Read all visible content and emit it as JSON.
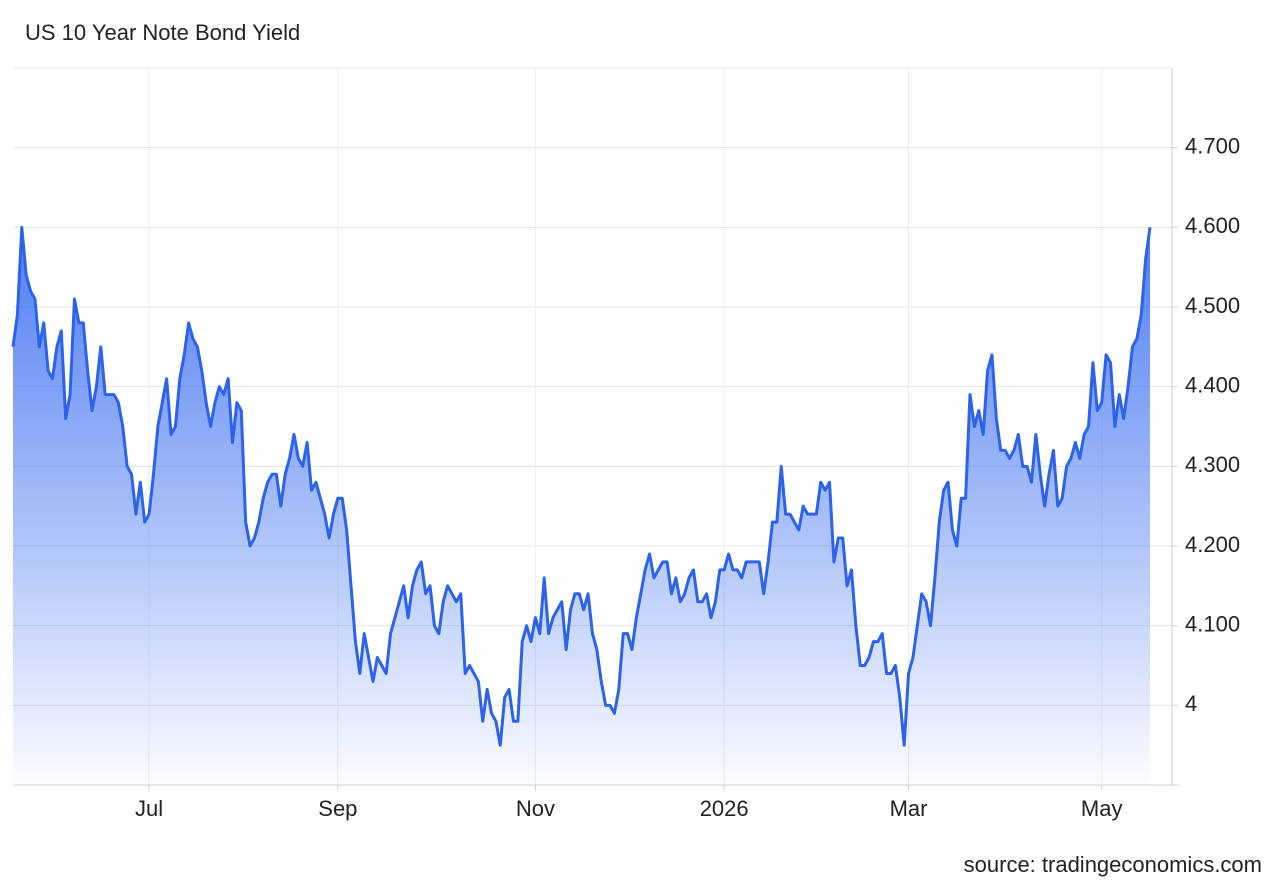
{
  "chart_data": {
    "type": "area",
    "title": "US 10 Year Note Bond Yield",
    "source": "source: tradingeconomics.com",
    "color": "#2d62ea",
    "ylim": [
      3.9,
      4.8
    ],
    "yticks": [
      4,
      {
        "value": 4.1,
        "label": "4.100"
      },
      {
        "value": 4.2,
        "label": "4.200"
      },
      {
        "value": 4.3,
        "label": "4.300"
      },
      {
        "value": 4.4,
        "label": "4.400"
      },
      {
        "value": 4.5,
        "label": "4.500"
      },
      {
        "value": 4.6,
        "label": "4.600"
      },
      {
        "value": 4.7,
        "label": "4.700"
      }
    ],
    "grid": true,
    "categories": [
      null,
      null,
      null,
      null,
      null,
      null,
      null,
      null,
      null,
      null,
      null,
      null,
      null,
      null,
      null,
      null,
      null,
      null,
      null,
      null,
      null,
      null,
      null,
      null,
      null,
      null,
      null,
      null,
      null,
      null,
      null,
      "Jul",
      null,
      null,
      null,
      null,
      null,
      null,
      null,
      null,
      null,
      null,
      null,
      null,
      null,
      null,
      null,
      null,
      null,
      null,
      null,
      null,
      null,
      null,
      null,
      null,
      null,
      null,
      null,
      null,
      null,
      null,
      null,
      null,
      null,
      null,
      null,
      null,
      null,
      null,
      null,
      null,
      null,
      null,
      "Sep",
      null,
      null,
      null,
      null,
      null,
      null,
      null,
      null,
      null,
      null,
      null,
      null,
      null,
      null,
      null,
      null,
      null,
      null,
      null,
      null,
      null,
      null,
      null,
      null,
      null,
      null,
      null,
      null,
      null,
      null,
      null,
      null,
      null,
      null,
      null,
      null,
      null,
      null,
      null,
      null,
      null,
      null,
      null,
      null,
      "Nov",
      null,
      null,
      null,
      null,
      null,
      null,
      null,
      null,
      null,
      null,
      null,
      null,
      null,
      null,
      null,
      null,
      null,
      null,
      null,
      null,
      null,
      null,
      null,
      null,
      null,
      null,
      null,
      null,
      null,
      null,
      null,
      null,
      null,
      null,
      null,
      null,
      null,
      null,
      null,
      null,
      null,
      null,
      "2026",
      null,
      null,
      null,
      null,
      null,
      null,
      null,
      null,
      null,
      null,
      null,
      null,
      null,
      null,
      null,
      null,
      null,
      null,
      null,
      null,
      null,
      null,
      null,
      null,
      null,
      null,
      null,
      null,
      null,
      null,
      null,
      null,
      null,
      null,
      null,
      null,
      null,
      null,
      null,
      null,
      null,
      "Mar",
      null,
      null,
      null,
      null,
      null,
      null,
      null,
      null,
      null,
      null,
      null,
      null,
      null,
      null,
      null,
      null,
      null,
      null,
      null,
      null,
      null,
      null,
      null,
      null,
      null,
      null,
      null,
      null,
      null,
      null,
      null,
      null,
      null,
      null,
      null,
      null,
      null,
      null,
      null,
      null,
      null,
      null,
      null,
      "May",
      null,
      null,
      null,
      null,
      null,
      null,
      null,
      null,
      null,
      null,
      null
    ],
    "values": [
      4.45,
      4.49,
      4.6,
      4.54,
      4.52,
      4.51,
      4.45,
      4.48,
      4.42,
      4.41,
      4.45,
      4.47,
      4.36,
      4.39,
      4.51,
      4.48,
      4.48,
      4.42,
      4.37,
      4.4,
      4.45,
      4.39,
      4.39,
      4.39,
      4.38,
      4.35,
      4.3,
      4.29,
      4.24,
      4.28,
      4.23,
      4.24,
      4.29,
      4.35,
      4.38,
      4.41,
      4.34,
      4.35,
      4.41,
      4.44,
      4.48,
      4.46,
      4.45,
      4.42,
      4.38,
      4.35,
      4.38,
      4.4,
      4.39,
      4.41,
      4.33,
      4.38,
      4.37,
      4.23,
      4.2,
      4.21,
      4.23,
      4.26,
      4.28,
      4.29,
      4.29,
      4.25,
      4.29,
      4.31,
      4.34,
      4.31,
      4.3,
      4.33,
      4.27,
      4.28,
      4.26,
      4.24,
      4.21,
      4.24,
      4.26,
      4.26,
      4.22,
      4.15,
      4.08,
      4.04,
      4.09,
      4.06,
      4.03,
      4.06,
      4.05,
      4.04,
      4.09,
      4.11,
      4.13,
      4.15,
      4.11,
      4.15,
      4.17,
      4.18,
      4.14,
      4.15,
      4.1,
      4.09,
      4.13,
      4.15,
      4.14,
      4.13,
      4.14,
      4.04,
      4.05,
      4.04,
      4.03,
      3.98,
      4.02,
      3.99,
      3.98,
      3.95,
      4.01,
      4.02,
      3.98,
      3.98,
      4.08,
      4.1,
      4.08,
      4.11,
      4.09,
      4.16,
      4.09,
      4.11,
      4.12,
      4.13,
      4.07,
      4.12,
      4.14,
      4.14,
      4.12,
      4.14,
      4.09,
      4.07,
      4.03,
      4.0,
      4.0,
      3.99,
      4.02,
      4.09,
      4.09,
      4.07,
      4.11,
      4.14,
      4.17,
      4.19,
      4.16,
      4.17,
      4.18,
      4.18,
      4.14,
      4.16,
      4.13,
      4.14,
      4.16,
      4.17,
      4.13,
      4.13,
      4.14,
      4.11,
      4.13,
      4.17,
      4.17,
      4.19,
      4.17,
      4.17,
      4.16,
      4.18,
      4.18,
      4.18,
      4.18,
      4.14,
      4.18,
      4.23,
      4.23,
      4.3,
      4.24,
      4.24,
      4.23,
      4.22,
      4.25,
      4.24,
      4.24,
      4.24,
      4.28,
      4.27,
      4.28,
      4.18,
      4.21,
      4.21,
      4.15,
      4.17,
      4.1,
      4.05,
      4.05,
      4.06,
      4.08,
      4.08,
      4.09,
      4.04,
      4.04,
      4.05,
      4.01,
      3.95,
      4.04,
      4.06,
      4.1,
      4.14,
      4.13,
      4.1,
      4.16,
      4.23,
      4.27,
      4.28,
      4.22,
      4.2,
      4.26,
      4.26,
      4.39,
      4.35,
      4.37,
      4.34,
      4.42,
      4.44,
      4.36,
      4.32,
      4.32,
      4.31,
      4.32,
      4.34,
      4.3,
      4.3,
      4.28,
      4.34,
      4.29,
      4.25,
      4.29,
      4.32,
      4.25,
      4.26,
      4.3,
      4.31,
      4.33,
      4.31,
      4.34,
      4.35,
      4.43,
      4.37,
      4.38,
      4.44,
      4.43,
      4.35,
      4.39,
      4.36,
      4.4,
      4.45,
      4.46,
      4.49,
      4.56,
      4.6
    ]
  }
}
